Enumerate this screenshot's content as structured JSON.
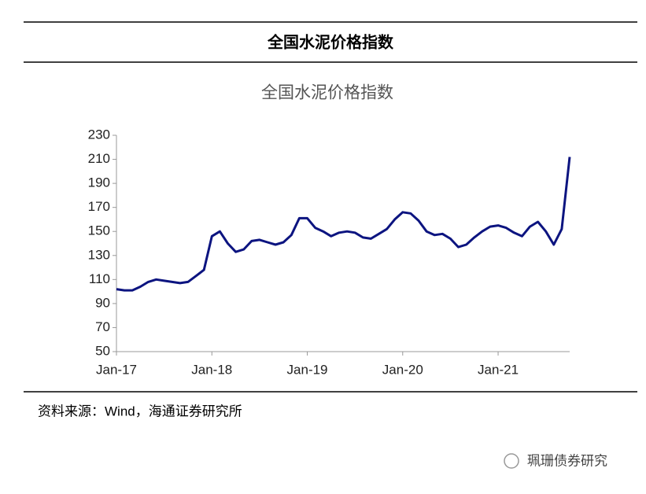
{
  "header": {
    "title": "全国水泥价格指数"
  },
  "chart_data": {
    "type": "line",
    "title": "全国水泥价格指数",
    "x": [
      "2017-01",
      "2017-02",
      "2017-03",
      "2017-04",
      "2017-05",
      "2017-06",
      "2017-07",
      "2017-08",
      "2017-09",
      "2017-10",
      "2017-11",
      "2017-12",
      "2018-01",
      "2018-02",
      "2018-03",
      "2018-04",
      "2018-05",
      "2018-06",
      "2018-07",
      "2018-08",
      "2018-09",
      "2018-10",
      "2018-11",
      "2018-12",
      "2019-01",
      "2019-02",
      "2019-03",
      "2019-04",
      "2019-05",
      "2019-06",
      "2019-07",
      "2019-08",
      "2019-09",
      "2019-10",
      "2019-11",
      "2019-12",
      "2020-01",
      "2020-02",
      "2020-03",
      "2020-04",
      "2020-05",
      "2020-06",
      "2020-07",
      "2020-08",
      "2020-09",
      "2020-10",
      "2020-11",
      "2020-12",
      "2021-01",
      "2021-02",
      "2021-03",
      "2021-04",
      "2021-05",
      "2021-06",
      "2021-07",
      "2021-08",
      "2021-09",
      "2021-10"
    ],
    "values": [
      102,
      101,
      101,
      104,
      108,
      110,
      109,
      108,
      107,
      108,
      113,
      118,
      146,
      150,
      140,
      133,
      135,
      142,
      143,
      141,
      139,
      141,
      147,
      161,
      161,
      153,
      150,
      146,
      149,
      150,
      149,
      145,
      144,
      148,
      152,
      160,
      166,
      165,
      159,
      150,
      147,
      148,
      144,
      137,
      139,
      145,
      150,
      154,
      155,
      153,
      149,
      146,
      154,
      158,
      150,
      139,
      152,
      212
    ],
    "color": "#0c1480",
    "xlim": [
      "2017-01",
      "2021-10"
    ],
    "xticks": [
      {
        "value": "2017-01",
        "label": "Jan-17"
      },
      {
        "value": "2018-01",
        "label": "Jan-18"
      },
      {
        "value": "2019-01",
        "label": "Jan-19"
      },
      {
        "value": "2020-01",
        "label": "Jan-20"
      },
      {
        "value": "2021-01",
        "label": "Jan-21"
      }
    ],
    "ylim": [
      50,
      230
    ],
    "yticks": [
      50,
      70,
      90,
      110,
      130,
      150,
      170,
      190,
      210,
      230
    ],
    "grid": false
  },
  "source": "资料来源：Wind，海通证券研究所",
  "watermark": "珮珊债券研究"
}
